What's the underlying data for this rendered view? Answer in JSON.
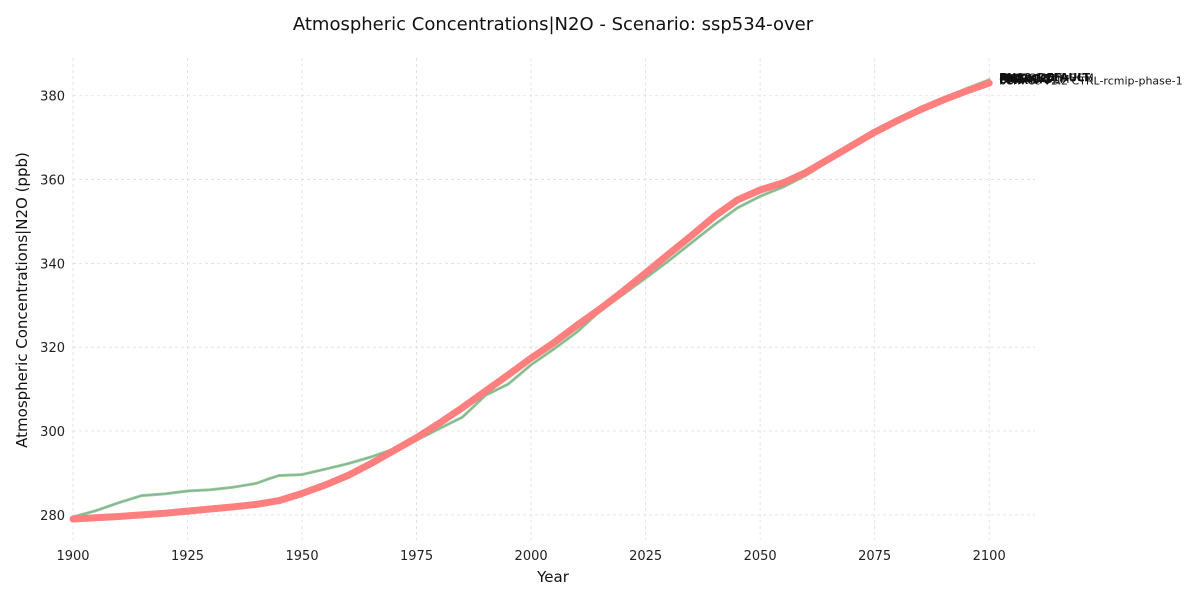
{
  "chart_data": {
    "type": "line",
    "title": "Atmospheric Concentrations|N2O - Scenario: ssp534-over",
    "xlabel": "Year",
    "ylabel": "Atmospheric Concentrations|N2O (ppb)",
    "xlim": [
      1900,
      2110
    ],
    "ylim": [
      274,
      389
    ],
    "xticks": [
      1900,
      1925,
      1950,
      1975,
      2000,
      2025,
      2050,
      2075,
      2100
    ],
    "yticks": [
      280,
      300,
      320,
      340,
      360,
      380
    ],
    "grid": true,
    "legend": "none",
    "series": [
      {
        "name": "MAGICC7",
        "color": "#a8d08d",
        "width": 3,
        "x": [
          1900,
          1905,
          1910,
          1915,
          1920,
          1925,
          1930,
          1935,
          1940,
          1943,
          1945,
          1950,
          1955,
          1960,
          1965,
          1970,
          1975,
          1980,
          1985,
          1990,
          1995,
          2000,
          2005,
          2010,
          2015,
          2020,
          2025,
          2030,
          2035,
          2040,
          2045,
          2050,
          2055,
          2060,
          2065,
          2070,
          2075,
          2080,
          2085,
          2090,
          2095,
          2100
        ],
        "y": [
          279.5,
          281.0,
          282.9,
          284.6,
          285.0,
          285.7,
          286.0,
          286.6,
          287.5,
          288.7,
          289.4,
          289.6,
          290.9,
          292.2,
          293.8,
          295.7,
          297.8,
          300.6,
          303.3,
          308.5,
          311.2,
          315.8,
          319.6,
          323.6,
          328.6,
          332.5,
          336.5,
          340.6,
          344.9,
          349.2,
          353.2,
          356.0,
          358.2,
          361.0,
          364.4,
          367.9,
          371.3,
          374.3,
          377.0,
          379.4,
          381.7,
          383.8
        ]
      },
      {
        "name": "CICERO-SCM",
        "color": "#8ebfa6",
        "width": 2,
        "x": [
          1900,
          1905,
          1910,
          1915,
          1920,
          1925,
          1930,
          1935,
          1940,
          1943,
          1945,
          1950,
          1955,
          1960,
          1965,
          1970,
          1975,
          1980,
          1985,
          1990,
          1995,
          2000,
          2005,
          2010,
          2015,
          2020,
          2025,
          2030,
          2035,
          2040,
          2045,
          2050,
          2055,
          2060,
          2065,
          2070,
          2075,
          2080,
          2085,
          2090,
          2095,
          2100
        ],
        "y": [
          279.5,
          281.0,
          282.9,
          284.6,
          285.0,
          285.7,
          286.0,
          286.6,
          287.5,
          288.7,
          289.4,
          289.6,
          290.9,
          292.2,
          293.8,
          295.7,
          297.8,
          300.6,
          303.3,
          308.5,
          311.2,
          315.8,
          319.6,
          323.6,
          328.6,
          332.5,
          336.5,
          340.6,
          344.9,
          349.2,
          353.2,
          356.0,
          358.2,
          361.0,
          364.4,
          367.9,
          371.3,
          374.3,
          377.0,
          379.4,
          381.7,
          383.8
        ]
      },
      {
        "name": "FaIR-v1.5",
        "color": "#9ccc8e",
        "width": 1.5,
        "x": [
          1900,
          1905,
          1910,
          1915,
          1920,
          1925,
          1930,
          1935,
          1940,
          1943,
          1945,
          1950,
          1955,
          1960,
          1965,
          1970,
          1975,
          1980,
          1985,
          1990,
          1995,
          2000,
          2005,
          2010,
          2015,
          2020,
          2025,
          2030,
          2035,
          2040,
          2045,
          2050,
          2055,
          2060,
          2065,
          2070,
          2075,
          2080,
          2085,
          2090,
          2095,
          2100
        ],
        "y": [
          279.5,
          281.0,
          282.9,
          284.6,
          285.0,
          285.7,
          286.0,
          286.6,
          287.5,
          288.7,
          289.4,
          289.6,
          290.9,
          292.2,
          293.8,
          295.7,
          297.8,
          300.6,
          303.3,
          308.5,
          311.2,
          315.8,
          319.6,
          323.6,
          328.6,
          332.5,
          336.5,
          340.6,
          344.9,
          349.2,
          353.2,
          356.0,
          358.2,
          361.0,
          364.4,
          367.9,
          371.3,
          374.3,
          377.0,
          379.4,
          381.7,
          383.8
        ]
      },
      {
        "name": "Hector",
        "color": "#7fb5a0",
        "width": 1.2,
        "x": [
          1900,
          1905,
          1910,
          1915,
          1920,
          1925,
          1930,
          1935,
          1940,
          1943,
          1945,
          1950,
          1955,
          1960,
          1965,
          1970,
          1975,
          1980,
          1985,
          1990,
          1995,
          2000,
          2005,
          2010,
          2015,
          2020,
          2025,
          2030,
          2035,
          2040,
          2045,
          2050,
          2055,
          2060,
          2065,
          2070,
          2075,
          2080,
          2085,
          2090,
          2095,
          2100
        ],
        "y": [
          279.5,
          281.0,
          282.9,
          284.6,
          285.0,
          285.7,
          286.0,
          286.6,
          287.5,
          288.7,
          289.4,
          289.6,
          290.9,
          292.2,
          293.8,
          295.7,
          297.8,
          300.6,
          303.3,
          308.5,
          311.2,
          315.8,
          319.6,
          323.6,
          328.6,
          332.5,
          336.5,
          340.6,
          344.9,
          349.2,
          353.2,
          356.0,
          358.2,
          361.0,
          364.4,
          367.9,
          371.3,
          374.3,
          377.0,
          379.4,
          381.7,
          383.8
        ]
      },
      {
        "name": "Felix",
        "color": "#ff7f7f",
        "width": 7,
        "x": [
          1900,
          1905,
          1910,
          1915,
          1920,
          1925,
          1930,
          1935,
          1940,
          1945,
          1950,
          1955,
          1960,
          1965,
          1970,
          1975,
          1980,
          1985,
          1990,
          1995,
          2000,
          2005,
          2010,
          2015,
          2020,
          2025,
          2030,
          2035,
          2040,
          2045,
          2050,
          2055,
          2060,
          2065,
          2070,
          2075,
          2080,
          2085,
          2090,
          2095,
          2100
        ],
        "y": [
          279.0,
          279.3,
          279.6,
          280.0,
          280.4,
          280.9,
          281.4,
          281.9,
          282.5,
          283.4,
          285.1,
          287.1,
          289.4,
          292.2,
          295.3,
          298.4,
          301.9,
          305.6,
          309.5,
          313.4,
          317.4,
          321.1,
          325.2,
          329.1,
          333.3,
          337.7,
          342.2,
          346.6,
          351.2,
          355.1,
          357.5,
          359.2,
          361.7,
          364.9,
          368.1,
          371.3,
          374.1,
          376.7,
          379.0,
          381.1,
          383.0
        ]
      }
    ],
    "end_labels": [
      "Hector",
      "MAGICC7",
      "CICERO-SCM",
      "FaIR-v1.5",
      "Felix",
      "PROTSENCE-SCM",
      "OSCARv3.1",
      "MCE-v1.2",
      "bern-cc-v1.2 CTRL-rcmip-phase-1",
      "PH99_DEFAULT"
    ]
  }
}
